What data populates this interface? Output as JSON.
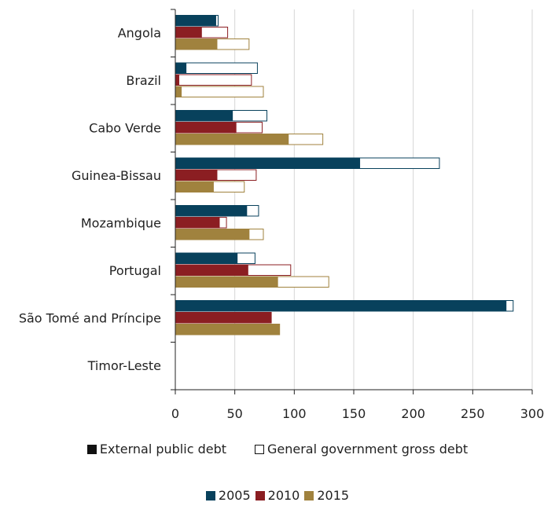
{
  "chart_data": {
    "type": "bar",
    "orientation": "horizontal",
    "categories": [
      "Angola",
      "Brazil",
      "Cabo Verde",
      "Guinea-Bissau",
      "Mozambique",
      "Portugal",
      "São Tomé and Príncipe",
      "Timor-Leste"
    ],
    "years": [
      "2005",
      "2010",
      "2015"
    ],
    "series": [
      {
        "name": "External public debt",
        "style": "filled",
        "values": {
          "2005": [
            34,
            9,
            48,
            155,
            60,
            52,
            278,
            0
          ],
          "2010": [
            22,
            3,
            51,
            35,
            37,
            61,
            81,
            0
          ],
          "2015": [
            35,
            5,
            95,
            32,
            62,
            86,
            88,
            0
          ]
        }
      },
      {
        "name": "General government gross debt",
        "style": "outline",
        "values": {
          "2005": [
            36,
            69,
            77,
            222,
            70,
            67,
            284,
            0
          ],
          "2010": [
            44,
            64,
            73,
            68,
            43,
            97,
            81,
            0
          ],
          "2015": [
            62,
            74,
            124,
            58,
            74,
            129,
            88,
            0
          ]
        }
      }
    ],
    "x_ticks": [
      "0",
      "50",
      "100",
      "150",
      "200",
      "250",
      "300"
    ],
    "xlim": [
      0,
      300
    ],
    "xlabel": "",
    "ylabel": "",
    "grid": "vertical",
    "colors": {
      "2005": "#08415c",
      "2010": "#8b1e22",
      "2015": "#a0823e"
    },
    "legend_types": [
      {
        "label": "External public debt",
        "swatch": "filled",
        "color": "#111111"
      },
      {
        "label": "General government gross debt",
        "swatch": "outline",
        "color": "#111111"
      }
    ],
    "legend_years": [
      {
        "label": "2005",
        "color": "#08415c"
      },
      {
        "label": "2010",
        "color": "#8b1e22"
      },
      {
        "label": "2015",
        "color": "#a0823e"
      }
    ],
    "legend_placement": "bottom"
  }
}
